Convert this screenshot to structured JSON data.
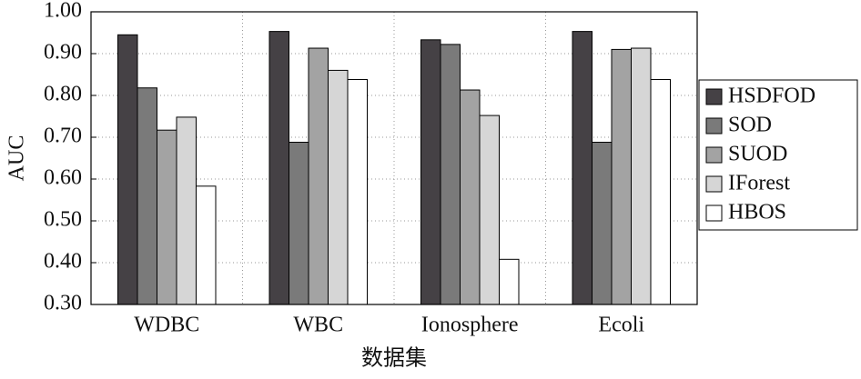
{
  "chart_data": {
    "type": "bar",
    "xlabel": "数据集",
    "ylabel": "AUC",
    "categories": [
      "WDBC",
      "WBC",
      "Ionosphere",
      "Ecoli"
    ],
    "series": [
      {
        "name": "HSDFOD",
        "color": "#454145",
        "values": [
          0.945,
          0.953,
          0.933,
          0.953
        ]
      },
      {
        "name": "SOD",
        "color": "#7a7a7a",
        "values": [
          0.818,
          0.688,
          0.922,
          0.688
        ]
      },
      {
        "name": "SUOD",
        "color": "#a3a3a3",
        "values": [
          0.717,
          0.913,
          0.813,
          0.91
        ]
      },
      {
        "name": "IForest",
        "color": "#d6d6d6",
        "values": [
          0.748,
          0.86,
          0.752,
          0.913
        ]
      },
      {
        "name": "HBOS",
        "color": "#ffffff",
        "values": [
          0.583,
          0.838,
          0.408,
          0.838
        ]
      }
    ],
    "ylim": [
      0.3,
      1.0
    ],
    "yticks": [
      {
        "value": 0.3,
        "label": "0.30"
      },
      {
        "value": 0.4,
        "label": "0.40"
      },
      {
        "value": 0.5,
        "label": "0.50"
      },
      {
        "value": 0.6,
        "label": "0.60"
      },
      {
        "value": 0.7,
        "label": "0.70"
      },
      {
        "value": 0.8,
        "label": "0.80"
      },
      {
        "value": 0.9,
        "label": "0.90"
      },
      {
        "value": 1.0,
        "label": "1.00"
      }
    ],
    "grid": true,
    "legend": "right"
  }
}
